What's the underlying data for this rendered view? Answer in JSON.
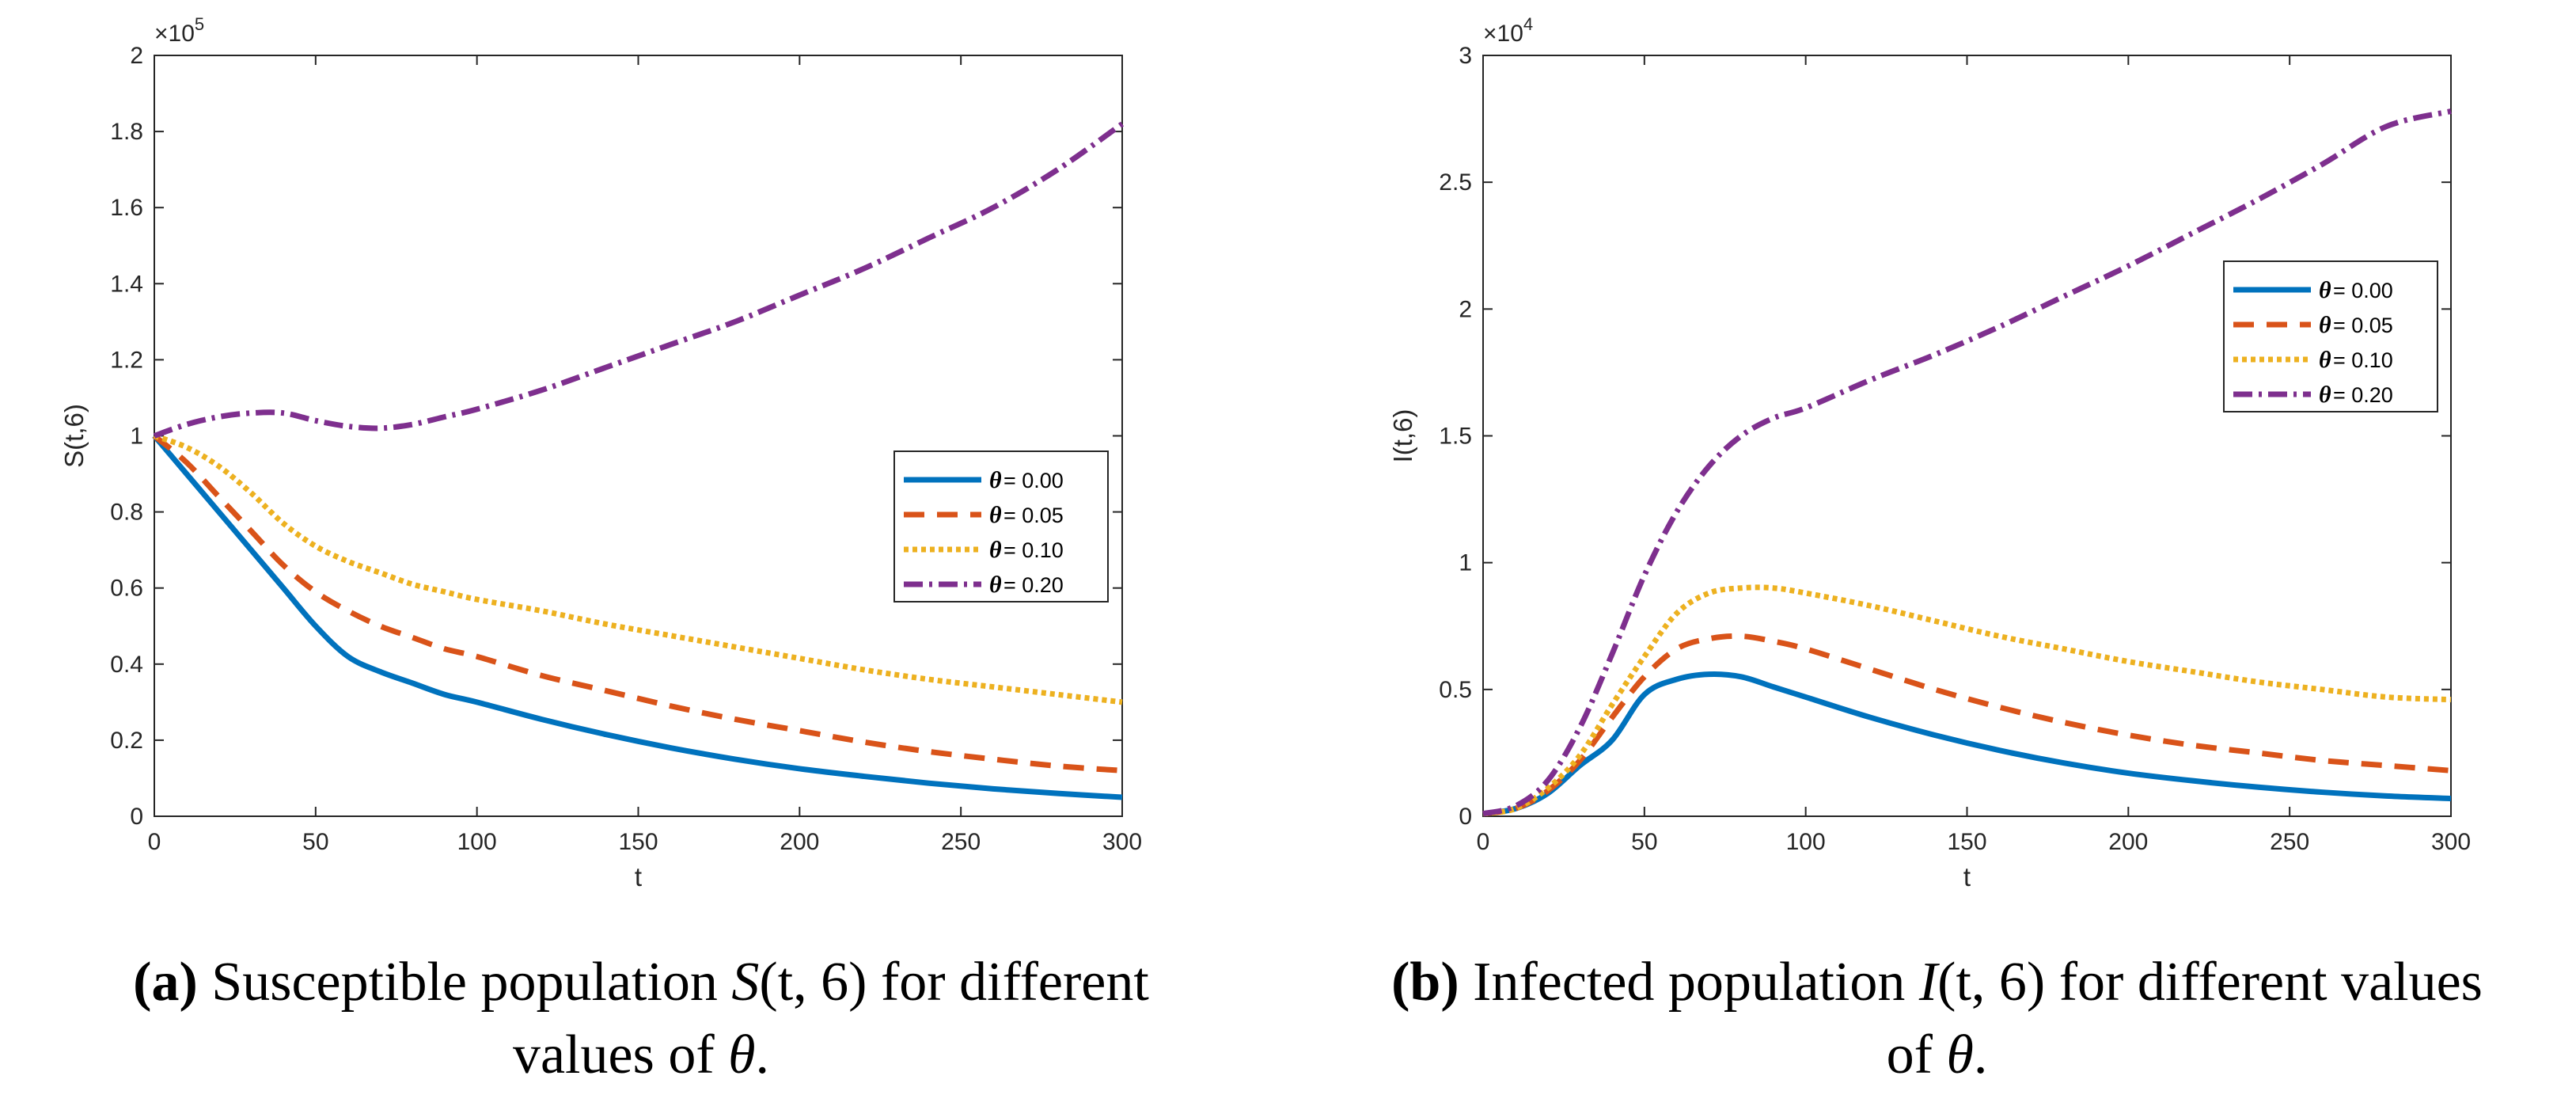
{
  "chart_data": [
    {
      "type": "line",
      "panel": "a",
      "xlabel": "t",
      "ylabel": "S(t,6)",
      "xlim": [
        0,
        300
      ],
      "ylim": [
        0,
        2
      ],
      "xticks": [
        "0",
        "50",
        "100",
        "150",
        "200",
        "250",
        "300"
      ],
      "yticks": [
        "0",
        "0.2",
        "0.4",
        "0.6",
        "0.8",
        "1",
        "1.2",
        "1.4",
        "1.6",
        "1.8",
        "2"
      ],
      "multiplier_base": "×10",
      "multiplier_exp": "5",
      "legend_position": "right-middle",
      "x": [
        0,
        10,
        20,
        30,
        40,
        50,
        60,
        70,
        80,
        90,
        100,
        120,
        140,
        160,
        180,
        200,
        220,
        240,
        260,
        280,
        300
      ],
      "series": [
        {
          "name": "θ = 0.00",
          "theta": "θ",
          "value_text": " = 0.00",
          "color": "#0072BD",
          "dash": "",
          "values": [
            1.0,
            0.9,
            0.8,
            0.7,
            0.6,
            0.5,
            0.42,
            0.38,
            0.35,
            0.32,
            0.3,
            0.255,
            0.215,
            0.18,
            0.15,
            0.125,
            0.105,
            0.087,
            0.072,
            0.06,
            0.05
          ]
        },
        {
          "name": "θ = 0.05",
          "theta": "θ",
          "value_text": " = 0.05",
          "color": "#D95319",
          "dash": "26 16",
          "values": [
            1.0,
            0.93,
            0.84,
            0.75,
            0.66,
            0.59,
            0.54,
            0.5,
            0.47,
            0.44,
            0.42,
            0.37,
            0.33,
            0.29,
            0.255,
            0.225,
            0.195,
            0.17,
            0.15,
            0.132,
            0.12
          ]
        },
        {
          "name": "θ = 0.10",
          "theta": "θ",
          "value_text": " = 0.10",
          "color": "#EDB120",
          "dash": "6 5",
          "values": [
            1.0,
            0.97,
            0.92,
            0.85,
            0.77,
            0.71,
            0.67,
            0.64,
            0.61,
            0.59,
            0.57,
            0.54,
            0.505,
            0.475,
            0.445,
            0.415,
            0.385,
            0.36,
            0.34,
            0.32,
            0.3
          ]
        },
        {
          "name": "θ = 0.20",
          "theta": "θ",
          "value_text": " = 0.20",
          "color": "#7E2F8E",
          "dash": "24 8 4 8",
          "values": [
            1.0,
            1.03,
            1.05,
            1.06,
            1.06,
            1.04,
            1.025,
            1.02,
            1.03,
            1.05,
            1.07,
            1.12,
            1.18,
            1.24,
            1.3,
            1.37,
            1.44,
            1.52,
            1.6,
            1.7,
            1.82
          ]
        }
      ]
    },
    {
      "type": "line",
      "panel": "b",
      "xlabel": "t",
      "ylabel": "I(t,6)",
      "xlim": [
        0,
        300
      ],
      "ylim": [
        0,
        3
      ],
      "xticks": [
        "0",
        "50",
        "100",
        "150",
        "200",
        "250",
        "300"
      ],
      "yticks": [
        "0",
        "0.5",
        "1",
        "1.5",
        "2",
        "2.5",
        "3"
      ],
      "multiplier_base": "×10",
      "multiplier_exp": "4",
      "legend_position": "top-right",
      "x": [
        0,
        10,
        20,
        30,
        40,
        50,
        60,
        70,
        80,
        90,
        100,
        120,
        140,
        160,
        180,
        200,
        220,
        240,
        260,
        280,
        300
      ],
      "series": [
        {
          "name": "θ = 0.00",
          "theta": "θ",
          "value_text": " = 0.00",
          "color": "#0072BD",
          "dash": "",
          "values": [
            0.01,
            0.03,
            0.09,
            0.2,
            0.3,
            0.48,
            0.54,
            0.56,
            0.55,
            0.51,
            0.47,
            0.39,
            0.32,
            0.26,
            0.21,
            0.17,
            0.14,
            0.115,
            0.095,
            0.08,
            0.07
          ]
        },
        {
          "name": "θ = 0.05",
          "theta": "θ",
          "value_text": " = 0.05",
          "color": "#D95319",
          "dash": "26 16",
          "values": [
            0.01,
            0.03,
            0.1,
            0.22,
            0.39,
            0.55,
            0.66,
            0.7,
            0.71,
            0.69,
            0.66,
            0.58,
            0.5,
            0.43,
            0.37,
            0.32,
            0.28,
            0.25,
            0.22,
            0.2,
            0.18
          ]
        },
        {
          "name": "θ = 0.10",
          "theta": "θ",
          "value_text": " = 0.10",
          "color": "#EDB120",
          "dash": "6 5",
          "values": [
            0.01,
            0.03,
            0.11,
            0.24,
            0.44,
            0.63,
            0.8,
            0.88,
            0.9,
            0.9,
            0.88,
            0.83,
            0.77,
            0.71,
            0.66,
            0.61,
            0.57,
            0.53,
            0.5,
            0.47,
            0.46
          ]
        },
        {
          "name": "θ = 0.20",
          "theta": "θ",
          "value_text": " = 0.20",
          "color": "#7E2F8E",
          "dash": "24 8 4 8",
          "values": [
            0.01,
            0.04,
            0.14,
            0.35,
            0.64,
            0.95,
            1.2,
            1.38,
            1.5,
            1.57,
            1.61,
            1.72,
            1.82,
            1.93,
            2.05,
            2.17,
            2.3,
            2.43,
            2.57,
            2.72,
            2.78
          ]
        }
      ]
    }
  ],
  "captions": {
    "a": {
      "label": "(a)",
      "text_before": " Susceptible population ",
      "math_S": "S",
      "math_args": "(t, 6)",
      "text_after": " for different",
      "line2_before": "values of ",
      "theta": "θ",
      "period": "."
    },
    "b": {
      "label": "(b)",
      "text_before": " Infected population ",
      "math_I": "I",
      "math_args": "(t, 6)",
      "text_after": " for different values",
      "line2_before": "of ",
      "theta": "θ",
      "period": "."
    }
  }
}
